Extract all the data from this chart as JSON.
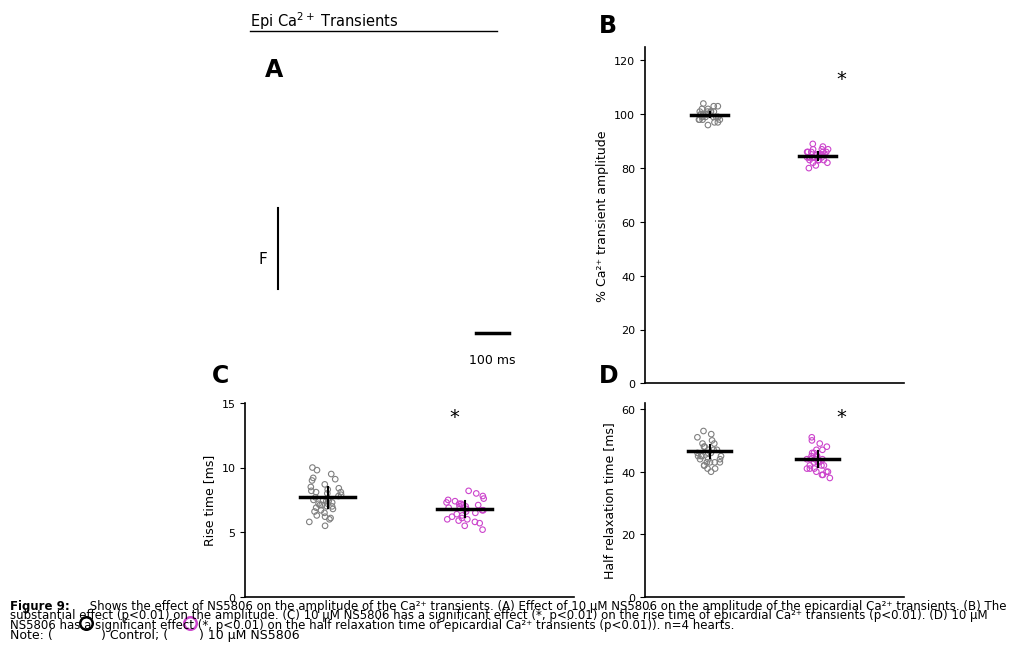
{
  "title": "Epi Ca²⁺ Transients",
  "panel_B_ylabel": "% Ca²⁺ transient amplitude",
  "panel_C_ylabel": "Rise time [ms]",
  "panel_D_ylabel": "Half relaxation time [ms]",
  "control_color": "#808080",
  "drug_color": "#cc44cc",
  "panel_B_control_mean": 100.0,
  "panel_B_control_sem": 1.0,
  "panel_B_drug_mean": 85.0,
  "panel_B_drug_sem": 1.5,
  "panel_B_ylim": [
    0,
    125
  ],
  "panel_B_yticks": [
    0,
    20,
    40,
    60,
    80,
    100,
    120
  ],
  "panel_B_control_points": [
    96,
    97,
    98,
    99,
    99,
    100,
    100,
    100,
    101,
    101,
    102,
    103,
    104,
    97,
    98,
    99,
    100,
    101,
    102,
    100,
    99,
    98,
    100,
    101,
    103,
    99,
    100,
    101,
    98,
    99
  ],
  "panel_B_drug_points": [
    80,
    81,
    82,
    83,
    84,
    84,
    85,
    85,
    86,
    86,
    87,
    88,
    89,
    83,
    84,
    85,
    86,
    87,
    82,
    83,
    84,
    85,
    86,
    84,
    85,
    86,
    83,
    84,
    85,
    87
  ],
  "panel_C_control_mean": 7.7,
  "panel_C_control_sem": 0.8,
  "panel_C_drug_mean": 6.8,
  "panel_C_drug_sem": 0.6,
  "panel_C_ylim": [
    0,
    15
  ],
  "panel_C_yticks": [
    0,
    5,
    10,
    15
  ],
  "panel_C_control_points": [
    5.5,
    5.8,
    6.0,
    6.2,
    6.5,
    6.7,
    6.9,
    7.0,
    7.1,
    7.2,
    7.3,
    7.4,
    7.5,
    7.6,
    7.7,
    7.8,
    7.9,
    8.0,
    8.1,
    8.2,
    8.3,
    8.5,
    8.7,
    9.0,
    9.2,
    9.5,
    9.8,
    10.0,
    6.3,
    7.1,
    7.4,
    8.1,
    6.8,
    7.0,
    7.2,
    7.5,
    8.4,
    6.1,
    6.6,
    9.1
  ],
  "panel_C_drug_points": [
    5.2,
    5.5,
    5.7,
    5.9,
    6.0,
    6.1,
    6.3,
    6.5,
    6.6,
    6.7,
    6.8,
    6.9,
    7.0,
    7.1,
    7.2,
    7.3,
    7.4,
    7.5,
    7.6,
    7.8,
    8.0,
    8.2,
    5.8,
    6.2,
    6.4,
    7.0,
    7.2,
    6.0,
    6.7,
    7.1
  ],
  "panel_D_control_mean": 46.5,
  "panel_D_control_sem": 2.0,
  "panel_D_drug_mean": 44.0,
  "panel_D_drug_sem": 2.5,
  "panel_D_ylim": [
    0,
    62
  ],
  "panel_D_yticks": [
    0,
    20,
    40,
    60
  ],
  "panel_D_control_points": [
    40,
    41,
    42,
    43,
    43,
    44,
    44,
    45,
    45,
    46,
    46,
    47,
    47,
    48,
    49,
    50,
    51,
    52,
    53,
    41,
    42,
    43,
    44,
    45,
    46,
    47,
    48,
    49,
    43,
    45
  ],
  "panel_D_drug_points": [
    38,
    39,
    40,
    40,
    41,
    41,
    42,
    43,
    43,
    44,
    44,
    45,
    45,
    46,
    47,
    48,
    49,
    50,
    51,
    40,
    41,
    42,
    43,
    44,
    45,
    46,
    39,
    42,
    44,
    47
  ],
  "caption_bold": "Figure 9:",
  "caption_text": " Shows the effect of NS5806 on the amplitude of the Ca²⁺ transients. (A) Effect of 10 μM NS5806 on the amplitude of the epicardial Ca²⁺ transients. (B) The substantial effect (p<0.01) on the amplitude. (C) 10 μM NS5806 has a significant effect (*, p<0.01) on the rise time of epicardial Ca²⁺ transients (p<0.01). (D) 10 μM NS5806 has a significant effect (*, p<0.01) on the half relaxation time of epicardial Ca²⁺ transients (p<0.01)). n=4 hearts."
}
